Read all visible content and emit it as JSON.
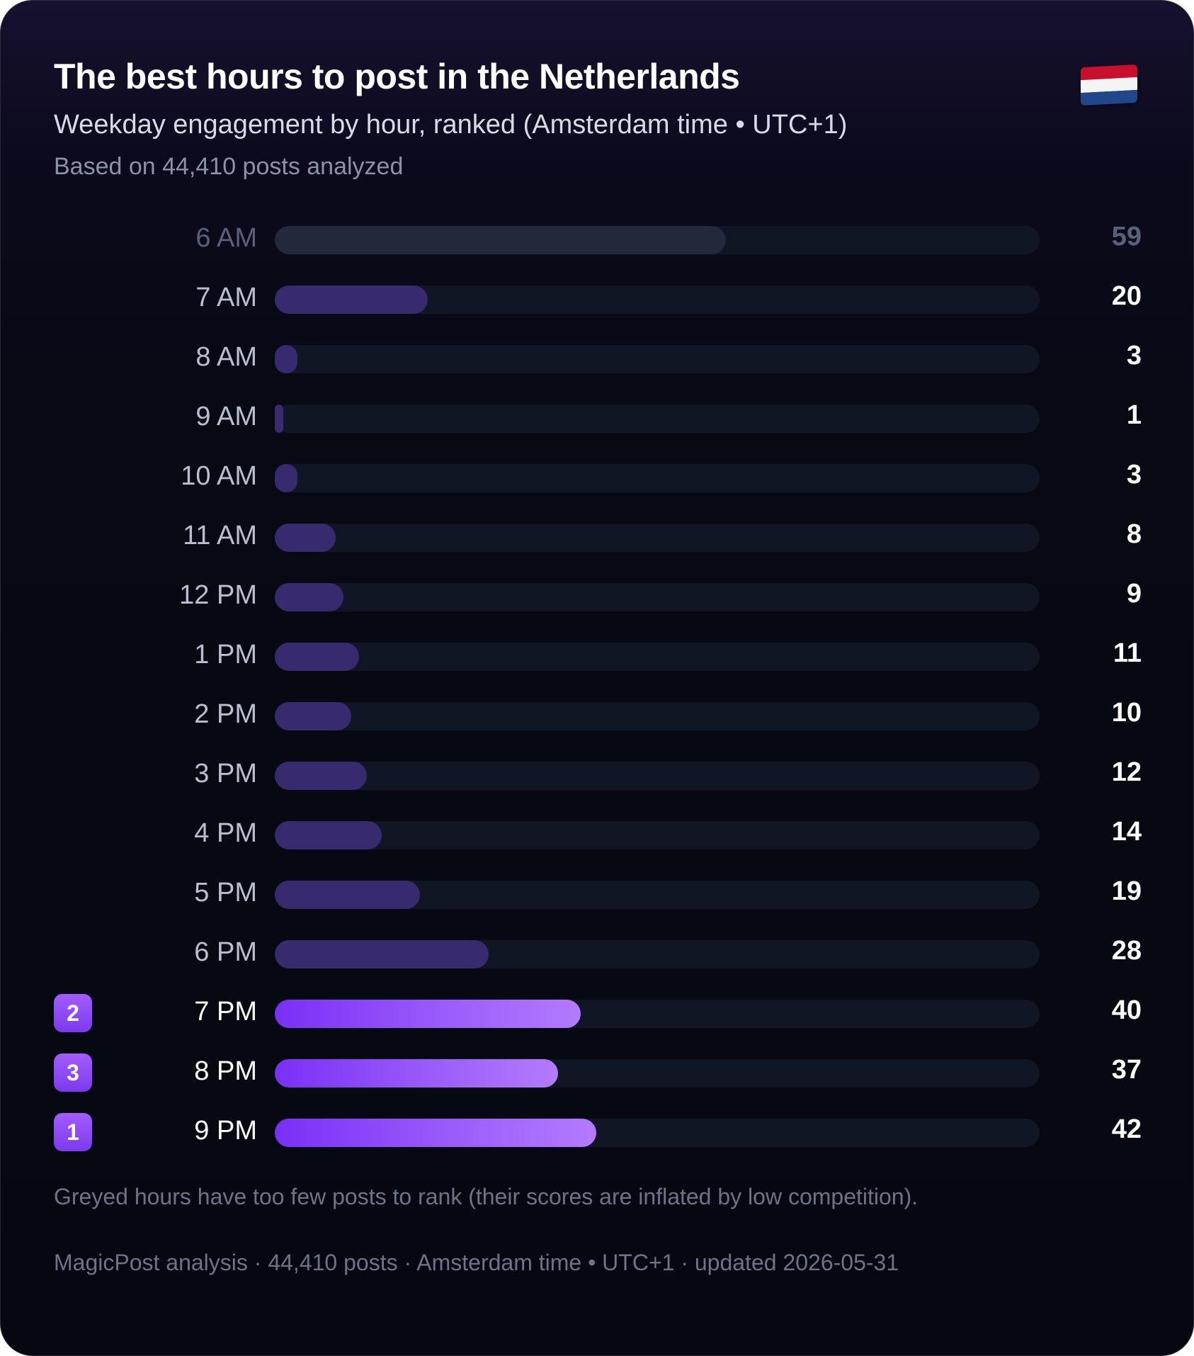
{
  "header": {
    "title": "The best hours to post in the Netherlands",
    "subtitle": "Weekday engagement by hour, ranked (Amsterdam time • UTC+1)",
    "basis": "Based on 44,410 posts analyzed",
    "flag_icon": "netherlands-flag-icon"
  },
  "colors": {
    "bar_default": "#372a6e",
    "bar_greyed": "#23283a",
    "bar_top_start": "#7b2ff7",
    "bar_top_end": "#b37bff",
    "track": "#111625",
    "badge": "#8b45f5"
  },
  "chart_data": {
    "type": "bar",
    "orientation": "horizontal",
    "categories": [
      "6 AM",
      "7 AM",
      "8 AM",
      "9 AM",
      "10 AM",
      "11 AM",
      "12 PM",
      "1 PM",
      "2 PM",
      "3 PM",
      "4 PM",
      "5 PM",
      "6 PM",
      "7 PM",
      "8 PM",
      "9 PM"
    ],
    "values": [
      59,
      20,
      3,
      1,
      3,
      8,
      9,
      11,
      10,
      12,
      14,
      19,
      28,
      40,
      37,
      42
    ],
    "value_labels": [
      "59",
      "20",
      "3",
      "1",
      "3",
      "8",
      "9",
      "11",
      "10",
      "12",
      "14",
      "19",
      "28",
      "40",
      "37",
      "42"
    ],
    "greyed": [
      true,
      false,
      false,
      false,
      false,
      false,
      false,
      false,
      false,
      false,
      false,
      false,
      false,
      false,
      false,
      false
    ],
    "ranks": [
      null,
      null,
      null,
      null,
      null,
      null,
      null,
      null,
      null,
      null,
      null,
      null,
      null,
      "2",
      "3",
      "1"
    ],
    "xlim": [
      0,
      100
    ],
    "title": "The best hours to post in the Netherlands",
    "xlabel": "",
    "ylabel": ""
  },
  "footnote": "Greyed hours have too few posts to rank (their scores are inflated by low competition).",
  "footer": "MagicPost analysis · 44,410 posts · Amsterdam time • UTC+1 · updated 2026-05-31"
}
